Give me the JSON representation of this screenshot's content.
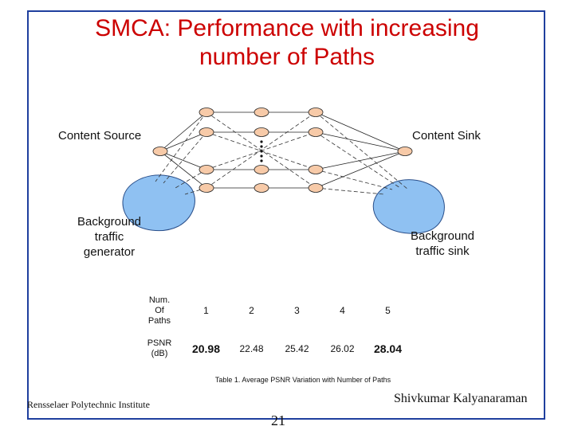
{
  "slide": {
    "title_line1": "SMCA: Performance with increasing",
    "title_line2": "number of Paths"
  },
  "diagram": {
    "source_label": "Content Source",
    "sink_label": "Content Sink",
    "bg_gen_label": [
      "Background",
      "traffic",
      "generator"
    ],
    "bg_sink_label": [
      "Background",
      "traffic sink"
    ],
    "colors": {
      "node_fill": "#f7caa8",
      "cloud_fill": "#8fc1f2",
      "frame": "#1f3f9e",
      "title": "#cc0000"
    }
  },
  "table": {
    "row1_header": [
      "Num.",
      "Of",
      "Paths"
    ],
    "row2_header": [
      "PSNR",
      "(dB)"
    ],
    "paths": [
      "1",
      "2",
      "3",
      "4",
      "5"
    ],
    "psnr": [
      "20.98",
      "22.48",
      "25.42",
      "26.02",
      "28.04"
    ],
    "caption": "Table 1. Average PSNR Variation with Number of Paths"
  },
  "footer": {
    "institute": "Rensselaer Polytechnic Institute",
    "author": "Shivkumar Kalyanaraman",
    "page_number": "21"
  }
}
